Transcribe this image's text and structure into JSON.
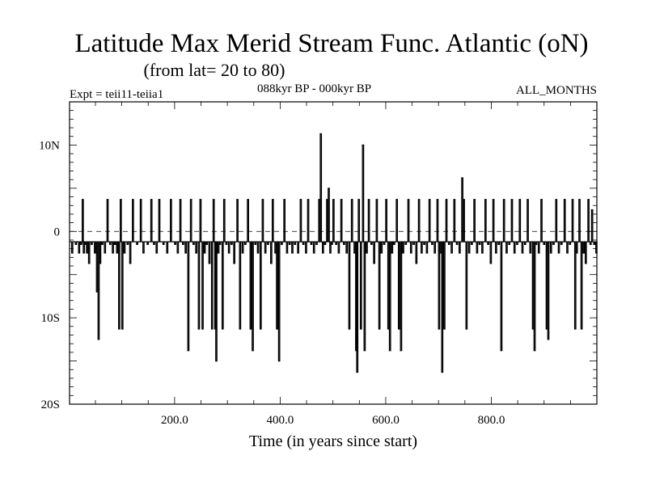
{
  "header": {
    "title": "Latitude Max Merid Stream Func. Atlantic (oN)",
    "subtitle": "(from lat= 20 to 80)",
    "expt": "Expt = teii11-teiia1",
    "period": "088kyr BP - 000kyr BP",
    "months": "ALL_MONTHS"
  },
  "chart_data": {
    "type": "line",
    "title": "Latitude Max Merid Stream Func. Atlantic (oN)",
    "subtitle": "(from lat= 20 to 80)",
    "xlabel": "Time (in years since start)",
    "ylabel": "",
    "xlim": [
      1,
      1000
    ],
    "ylim": [
      -20,
      15
    ],
    "x_ticks": [
      200,
      400,
      600,
      800
    ],
    "x_tick_labels": [
      "200.0",
      "400.0",
      "600.0",
      "800.0"
    ],
    "y_ticks": [
      10,
      0,
      -10,
      -20
    ],
    "y_tick_labels": [
      "10N",
      "0",
      "10S",
      "20S"
    ],
    "reference_line": 0,
    "baseline": -1.2,
    "line_color": "#000000",
    "series": [
      {
        "spikes": [
          [
            5,
            -2.5
          ],
          [
            12,
            -1.5
          ],
          [
            18,
            -2.5
          ],
          [
            22,
            -1.5
          ],
          [
            25,
            3.7
          ],
          [
            27,
            -2.5
          ],
          [
            30,
            -1.5
          ],
          [
            33,
            -2.5
          ],
          [
            37,
            -3.7
          ],
          [
            42,
            -1.5
          ],
          [
            48,
            -2.5
          ],
          [
            52,
            -7
          ],
          [
            55,
            -12.5
          ],
          [
            58,
            -3.7
          ],
          [
            62,
            -1.5
          ],
          [
            67,
            -2.5
          ],
          [
            72,
            3.7
          ],
          [
            77,
            -1.5
          ],
          [
            82,
            -2.5
          ],
          [
            86,
            -1.5
          ],
          [
            90,
            -2.5
          ],
          [
            94,
            -11.3
          ],
          [
            97,
            3.7
          ],
          [
            100,
            -11.3
          ],
          [
            104,
            -2.5
          ],
          [
            110,
            -1.5
          ],
          [
            115,
            -3.7
          ],
          [
            120,
            3.7
          ],
          [
            128,
            -1.5
          ],
          [
            135,
            3.7
          ],
          [
            140,
            -2.5
          ],
          [
            148,
            -1.5
          ],
          [
            155,
            3.7
          ],
          [
            160,
            -1.5
          ],
          [
            165,
            -2.5
          ],
          [
            170,
            3.7
          ],
          [
            178,
            -1.5
          ],
          [
            185,
            -2.5
          ],
          [
            192,
            3.7
          ],
          [
            200,
            -1.5
          ],
          [
            205,
            -2.5
          ],
          [
            210,
            3.7
          ],
          [
            215,
            -1.5
          ],
          [
            220,
            -2.5
          ],
          [
            225,
            -13.8
          ],
          [
            230,
            3.7
          ],
          [
            235,
            -1.5
          ],
          [
            240,
            -2.5
          ],
          [
            245,
            -11.3
          ],
          [
            248,
            3.7
          ],
          [
            252,
            -11.3
          ],
          [
            256,
            -2.5
          ],
          [
            260,
            -1.5
          ],
          [
            265,
            -3.7
          ],
          [
            270,
            -11.3
          ],
          [
            273,
            3.7
          ],
          [
            276,
            -11.3
          ],
          [
            278,
            -15
          ],
          [
            282,
            -2.5
          ],
          [
            285,
            -1.5
          ],
          [
            290,
            -11.3
          ],
          [
            293,
            3.7
          ],
          [
            297,
            -1.5
          ],
          [
            302,
            -2.5
          ],
          [
            307,
            -1.5
          ],
          [
            312,
            -3.7
          ],
          [
            318,
            3.7
          ],
          [
            323,
            -11.3
          ],
          [
            328,
            -2.5
          ],
          [
            333,
            -1.5
          ],
          [
            338,
            3.7
          ],
          [
            343,
            -11.3
          ],
          [
            347,
            -13.8
          ],
          [
            352,
            -1.5
          ],
          [
            357,
            -2.5
          ],
          [
            362,
            -11.3
          ],
          [
            366,
            3.7
          ],
          [
            371,
            -2.5
          ],
          [
            376,
            -1.5
          ],
          [
            382,
            -3.7
          ],
          [
            385,
            3.7
          ],
          [
            390,
            -2.5
          ],
          [
            393,
            -11.3
          ],
          [
            397,
            -15
          ],
          [
            402,
            -1.5
          ],
          [
            407,
            3.7
          ],
          [
            412,
            -2.5
          ],
          [
            417,
            -1.5
          ],
          [
            422,
            -2.5
          ],
          [
            427,
            -1.5
          ],
          [
            433,
            -2.5
          ],
          [
            438,
            3.7
          ],
          [
            443,
            -1.5
          ],
          [
            448,
            -2.5
          ],
          [
            452,
            3.7
          ],
          [
            458,
            -1.5
          ],
          [
            463,
            -2.5
          ],
          [
            468,
            -1.5
          ],
          [
            473,
            3.7
          ],
          [
            476,
            11.3
          ],
          [
            480,
            -2.5
          ],
          [
            484,
            -1.5
          ],
          [
            488,
            3.7
          ],
          [
            491,
            5
          ],
          [
            494,
            -2.5
          ],
          [
            497,
            -1.5
          ],
          [
            500,
            3.7
          ],
          [
            505,
            -1.5
          ],
          [
            510,
            -2.5
          ],
          [
            515,
            3.7
          ],
          [
            520,
            -1.5
          ],
          [
            525,
            -2.5
          ],
          [
            530,
            -11.3
          ],
          [
            535,
            3.7
          ],
          [
            540,
            -2.5
          ],
          [
            543,
            -13.8
          ],
          [
            545,
            -16.3
          ],
          [
            548,
            3.7
          ],
          [
            552,
            -11.3
          ],
          [
            556,
            10
          ],
          [
            559,
            -13.8
          ],
          [
            563,
            -2.5
          ],
          [
            567,
            3.7
          ],
          [
            572,
            -1.5
          ],
          [
            577,
            -3.7
          ],
          [
            582,
            3.7
          ],
          [
            587,
            -11.3
          ],
          [
            591,
            -2.5
          ],
          [
            596,
            -1.5
          ],
          [
            600,
            3.7
          ],
          [
            604,
            -11.3
          ],
          [
            607,
            -13.8
          ],
          [
            611,
            -2.5
          ],
          [
            615,
            -1.5
          ],
          [
            620,
            3.7
          ],
          [
            624,
            -11.3
          ],
          [
            628,
            -13.8
          ],
          [
            632,
            -2.5
          ],
          [
            637,
            -1.5
          ],
          [
            642,
            3.7
          ],
          [
            647,
            -2.5
          ],
          [
            652,
            -1.5
          ],
          [
            657,
            -3.7
          ],
          [
            662,
            3.7
          ],
          [
            667,
            -2.5
          ],
          [
            672,
            -1.5
          ],
          [
            677,
            -2.5
          ],
          [
            682,
            3.7
          ],
          [
            687,
            -1.5
          ],
          [
            692,
            -2.5
          ],
          [
            697,
            3.7
          ],
          [
            700,
            -11.3
          ],
          [
            703,
            -2.5
          ],
          [
            706,
            -16.3
          ],
          [
            710,
            -11.3
          ],
          [
            714,
            3.7
          ],
          [
            719,
            -1.5
          ],
          [
            724,
            -2.5
          ],
          [
            729,
            3.7
          ],
          [
            734,
            -1.5
          ],
          [
            739,
            -2.5
          ],
          [
            744,
            6.2
          ],
          [
            747,
            3.7
          ],
          [
            752,
            -11.3
          ],
          [
            757,
            -2.5
          ],
          [
            762,
            -1.5
          ],
          [
            767,
            3.7
          ],
          [
            772,
            -2.5
          ],
          [
            777,
            -1.5
          ],
          [
            782,
            -2.5
          ],
          [
            788,
            3.7
          ],
          [
            793,
            -1.5
          ],
          [
            798,
            -3.7
          ],
          [
            803,
            3.7
          ],
          [
            808,
            -2.5
          ],
          [
            813,
            -1.5
          ],
          [
            818,
            -13.8
          ],
          [
            823,
            3.7
          ],
          [
            828,
            -2.5
          ],
          [
            833,
            -1.5
          ],
          [
            838,
            3.7
          ],
          [
            843,
            -2.5
          ],
          [
            848,
            -1.5
          ],
          [
            853,
            3.7
          ],
          [
            858,
            -2.5
          ],
          [
            863,
            -1.5
          ],
          [
            868,
            3.7
          ],
          [
            873,
            -2.5
          ],
          [
            878,
            -11.3
          ],
          [
            881,
            -13.8
          ],
          [
            884,
            -1.5
          ],
          [
            889,
            -2.5
          ],
          [
            894,
            3.7
          ],
          [
            899,
            -1.5
          ],
          [
            904,
            -11.3
          ],
          [
            907,
            -12.5
          ],
          [
            912,
            -2.5
          ],
          [
            917,
            -1.5
          ],
          [
            922,
            3.7
          ],
          [
            927,
            -2.5
          ],
          [
            932,
            -1.5
          ],
          [
            938,
            3.7
          ],
          [
            943,
            -2.5
          ],
          [
            948,
            -1.5
          ],
          [
            953,
            3.7
          ],
          [
            958,
            -11.3
          ],
          [
            961,
            -2.5
          ],
          [
            966,
            3.7
          ],
          [
            970,
            -11.3
          ],
          [
            974,
            -2.5
          ],
          [
            978,
            -3.7
          ],
          [
            983,
            3.7
          ],
          [
            987,
            -1.5
          ],
          [
            990,
            2.5
          ],
          [
            994,
            -1.5
          ],
          [
            998,
            -2.5
          ]
        ]
      }
    ]
  }
}
